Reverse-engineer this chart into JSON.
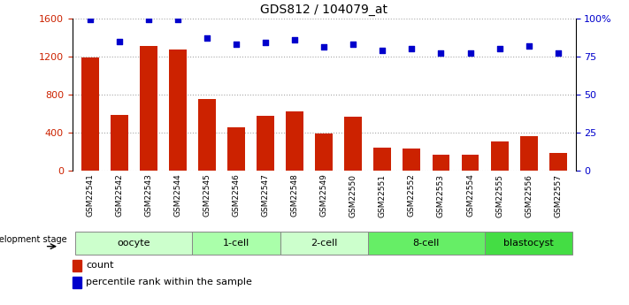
{
  "title": "GDS812 / 104079_at",
  "samples": [
    "GSM22541",
    "GSM22542",
    "GSM22543",
    "GSM22544",
    "GSM22545",
    "GSM22546",
    "GSM22547",
    "GSM22548",
    "GSM22549",
    "GSM22550",
    "GSM22551",
    "GSM22552",
    "GSM22553",
    "GSM22554",
    "GSM22555",
    "GSM22556",
    "GSM22557"
  ],
  "counts": [
    1190,
    590,
    1310,
    1275,
    750,
    460,
    580,
    620,
    390,
    570,
    240,
    235,
    170,
    165,
    310,
    360,
    190
  ],
  "percentiles": [
    99,
    85,
    99,
    99,
    87,
    83,
    84,
    86,
    81,
    83,
    79,
    80,
    77,
    77,
    80,
    82,
    77
  ],
  "bar_color": "#cc2200",
  "dot_color": "#0000cc",
  "ylim_left": [
    0,
    1600
  ],
  "ylim_right": [
    0,
    100
  ],
  "yticks_left": [
    0,
    400,
    800,
    1200,
    1600
  ],
  "yticks_right": [
    0,
    25,
    50,
    75,
    100
  ],
  "ytick_labels_right": [
    "0",
    "25",
    "50",
    "75",
    "100%"
  ],
  "ytick_labels_left": [
    "0",
    "400",
    "800",
    "1200",
    "1600"
  ],
  "groups": [
    {
      "label": "oocyte",
      "start": 0,
      "end": 4,
      "color": "#ccffcc"
    },
    {
      "label": "1-cell",
      "start": 4,
      "end": 7,
      "color": "#aaffaa"
    },
    {
      "label": "2-cell",
      "start": 7,
      "end": 10,
      "color": "#ccffcc"
    },
    {
      "label": "8-cell",
      "start": 10,
      "end": 14,
      "color": "#66ee66"
    },
    {
      "label": "blastocyst",
      "start": 14,
      "end": 17,
      "color": "#44dd44"
    }
  ],
  "dev_stage_label": "development stage",
  "legend_count_label": "count",
  "legend_pct_label": "percentile rank within the sample",
  "background_color": "#ffffff",
  "tick_bg_color": "#cccccc",
  "grid_color": "#000000",
  "grid_alpha": 0.35,
  "grid_linestyle": ":"
}
